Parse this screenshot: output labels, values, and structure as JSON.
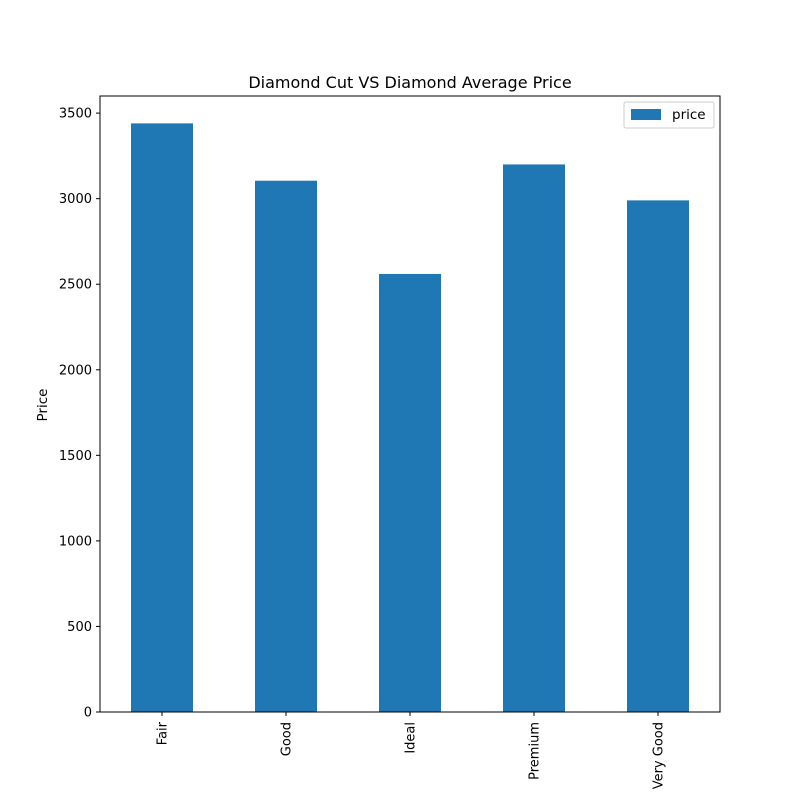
{
  "chart_data": {
    "type": "bar",
    "title": "Diamond Cut VS Diamond Average Price",
    "xlabel": "",
    "ylabel": "Price",
    "categories": [
      "Fair",
      "Good",
      "Ideal",
      "Premium",
      "Very Good"
    ],
    "series": [
      {
        "name": "price",
        "values": [
          3440,
          3105,
          2560,
          3200,
          2990
        ],
        "color": "#1f77b4"
      }
    ],
    "ylim": [
      0,
      3600
    ],
    "yticks": [
      0,
      500,
      1000,
      1500,
      2000,
      2500,
      3000,
      3500
    ],
    "ytick_labels": [
      "0",
      "500",
      "1000",
      "1500",
      "2000",
      "2500",
      "3000",
      "3500"
    ],
    "legend_position": "top-right",
    "grid": false
  }
}
